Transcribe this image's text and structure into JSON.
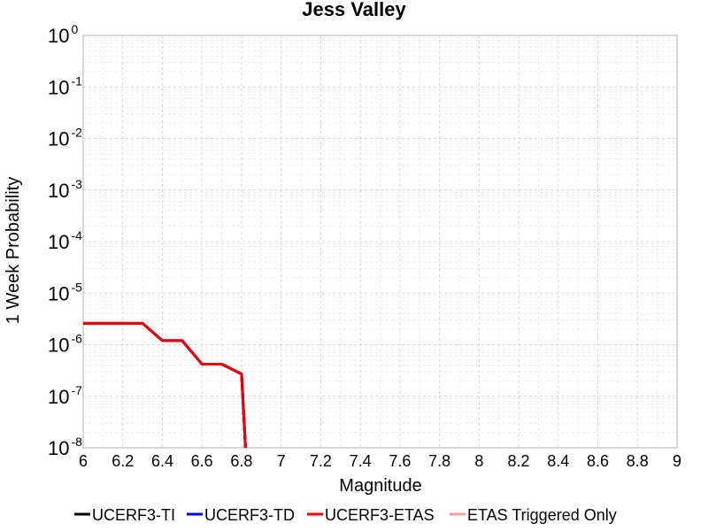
{
  "chart_data": {
    "type": "line",
    "title": "Jess Valley",
    "xlabel": "Magnitude",
    "ylabel": "1 Week Probability",
    "xlim": [
      6,
      9
    ],
    "ylim": [
      1e-08,
      1
    ],
    "yscale": "log",
    "grid": true,
    "legend_position": "bottom",
    "x_ticks": [
      "6",
      "6.2",
      "6.4",
      "6.6",
      "6.8",
      "7",
      "7.2",
      "7.4",
      "7.6",
      "7.8",
      "8",
      "8.2",
      "8.4",
      "8.6",
      "8.8",
      "9"
    ],
    "y_ticks": [
      {
        "base": "10",
        "exp": "0"
      },
      {
        "base": "10",
        "exp": "-1"
      },
      {
        "base": "10",
        "exp": "-2"
      },
      {
        "base": "10",
        "exp": "-3"
      },
      {
        "base": "10",
        "exp": "-4"
      },
      {
        "base": "10",
        "exp": "-5"
      },
      {
        "base": "10",
        "exp": "-6"
      },
      {
        "base": "10",
        "exp": "-7"
      },
      {
        "base": "10",
        "exp": "-8"
      }
    ],
    "series": [
      {
        "name": "UCERF3-TI",
        "color": "#000000",
        "width": 3,
        "x": [
          6.0,
          6.3,
          6.4,
          6.5,
          6.6,
          6.7,
          6.8,
          6.82
        ],
        "y": [
          2.6e-06,
          2.6e-06,
          1.2e-06,
          1.2e-06,
          4.2e-07,
          4.2e-07,
          2.7e-07,
          1e-08
        ]
      },
      {
        "name": "UCERF3-TD",
        "color": "#0000dd",
        "width": 3,
        "x": [
          6.0,
          6.3,
          6.4,
          6.5,
          6.6,
          6.7,
          6.8,
          6.82
        ],
        "y": [
          2.6e-06,
          2.6e-06,
          1.2e-06,
          1.2e-06,
          4.2e-07,
          4.2e-07,
          2.7e-07,
          1e-08
        ]
      },
      {
        "name": "UCERF3-ETAS",
        "color": "#ee0000",
        "width": 3,
        "x": [
          6.0,
          6.3,
          6.4,
          6.5,
          6.6,
          6.7,
          6.8,
          6.82
        ],
        "y": [
          2.6e-06,
          2.6e-06,
          1.2e-06,
          1.2e-06,
          4.2e-07,
          4.2e-07,
          2.7e-07,
          1e-08
        ]
      },
      {
        "name": "ETAS Triggered Only",
        "color": "#f4a0a0",
        "width": 2,
        "x": [],
        "y": []
      }
    ]
  }
}
